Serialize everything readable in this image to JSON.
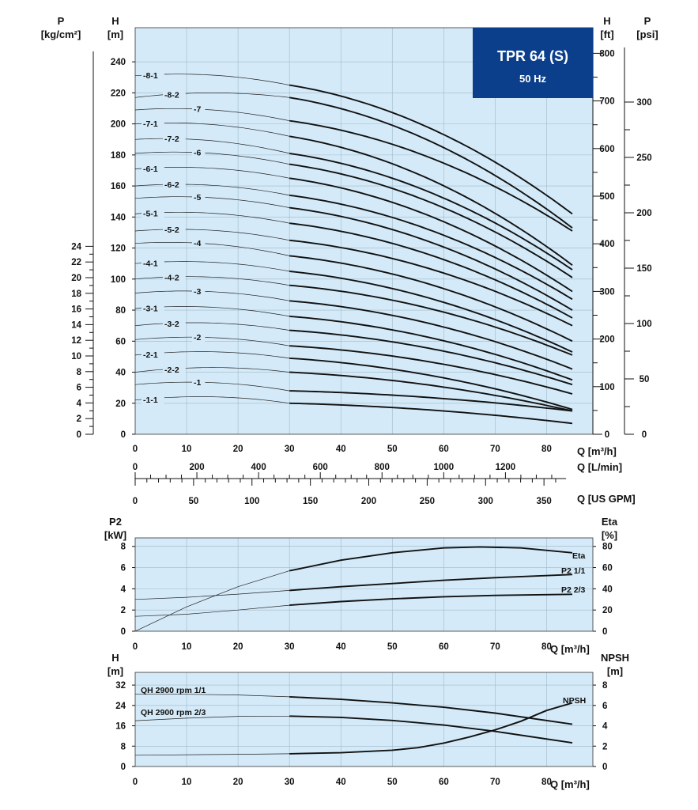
{
  "chart_data": [
    {
      "type": "line",
      "title_box": {
        "line1": "TPR 64 (S)",
        "line2": "50 Hz",
        "color": "#0b3f8c"
      },
      "y_left_outer": {
        "label1": "P",
        "label2": "[kg/cm²]",
        "ticks": [
          "0",
          "2",
          "4",
          "6",
          "8",
          "10",
          "12",
          "14",
          "16",
          "18",
          "20",
          "22",
          "24"
        ]
      },
      "y_left": {
        "label1": "H",
        "label2": "[m]",
        "ticks": [
          "0",
          "20",
          "40",
          "60",
          "80",
          "100",
          "120",
          "140",
          "160",
          "180",
          "200",
          "220",
          "240"
        ],
        "ylim": [
          0,
          262
        ]
      },
      "y_right": {
        "label1": "H",
        "label2": "[ft]",
        "ticks": [
          "0",
          "100",
          "200",
          "300",
          "400",
          "500",
          "600",
          "700",
          "800"
        ]
      },
      "y_right_outer": {
        "label1": "P",
        "label2": "[psi]",
        "ticks": [
          "0",
          "50",
          "100",
          "150",
          "200",
          "250",
          "300"
        ]
      },
      "x_axes": [
        {
          "label": "Q [m³/h]",
          "ticks": [
            "0",
            "10",
            "20",
            "30",
            "40",
            "50",
            "60",
            "70",
            "80"
          ]
        },
        {
          "label": "Q [L/min]",
          "ticks": [
            "0",
            "200",
            "400",
            "600",
            "800",
            "1000",
            "1200"
          ]
        },
        {
          "label": "Q [US GPM]",
          "ticks": [
            "0",
            "50",
            "100",
            "150",
            "200",
            "250",
            "300",
            "350"
          ]
        }
      ],
      "xlim": [
        0,
        89
      ],
      "operating_range": [
        30,
        85
      ],
      "series": [
        {
          "name": "-8-1",
          "h0": 231,
          "h30": 225,
          "h85": 142
        },
        {
          "name": "-8-2",
          "h0": 217,
          "h30": 217,
          "h85": 133
        },
        {
          "name": "-7",
          "h0": 209,
          "h30": 202,
          "h85": 131
        },
        {
          "name": "-7-1",
          "h0": 200,
          "h30": 192,
          "h85": 109
        },
        {
          "name": "-7-2",
          "h0": 190,
          "h30": 181,
          "h85": 106
        },
        {
          "name": "-6",
          "h0": 181,
          "h30": 174,
          "h85": 101
        },
        {
          "name": "-6-1",
          "h0": 171,
          "h30": 165,
          "h85": 92
        },
        {
          "name": "-6-2",
          "h0": 160,
          "h30": 154,
          "h85": 87
        },
        {
          "name": "-5",
          "h0": 152,
          "h30": 146,
          "h85": 80
        },
        {
          "name": "-5-1",
          "h0": 142,
          "h30": 136,
          "h85": 75
        },
        {
          "name": "-5-2",
          "h0": 131,
          "h30": 125,
          "h85": 70
        },
        {
          "name": "-4",
          "h0": 123,
          "h30": 115,
          "h85": 60
        },
        {
          "name": "-4-1",
          "h0": 110,
          "h30": 105,
          "h85": 53
        },
        {
          "name": "-4-2",
          "h0": 100,
          "h30": 96,
          "h85": 51
        },
        {
          "name": "-3",
          "h0": 91,
          "h30": 86,
          "h85": 42
        },
        {
          "name": "-3-1",
          "h0": 81,
          "h30": 76,
          "h85": 35
        },
        {
          "name": "-3-2",
          "h0": 70,
          "h30": 67,
          "h85": 32
        },
        {
          "name": "-2",
          "h0": 61,
          "h30": 57,
          "h85": 26
        },
        {
          "name": "-2-1",
          "h0": 51,
          "h30": 49,
          "h85": 16
        },
        {
          "name": "-2-2",
          "h0": 40,
          "h30": 40,
          "h85": 15
        },
        {
          "name": "-1",
          "h0": 32,
          "h30": 28,
          "h85": 15
        },
        {
          "name": "-1-1",
          "h0": 22,
          "h30": 20,
          "h85": 7
        }
      ]
    },
    {
      "type": "line",
      "y_left": {
        "label1": "P2",
        "label2": "[kW]",
        "ticks": [
          "0",
          "2",
          "4",
          "6",
          "8"
        ],
        "ylim": [
          0,
          8.8
        ]
      },
      "y_right": {
        "label1": "Eta",
        "label2": "[%]",
        "ticks": [
          "0",
          "20",
          "40",
          "60",
          "80"
        ],
        "ylim": [
          0,
          88
        ]
      },
      "x_axis": {
        "label": "Q [m³/h]",
        "ticks": [
          "0",
          "10",
          "20",
          "30",
          "40",
          "50",
          "60",
          "70",
          "80"
        ]
      },
      "series": [
        {
          "name": "Eta",
          "axis": "right",
          "points": [
            [
              0,
              0
            ],
            [
              10,
              23
            ],
            [
              20,
              42
            ],
            [
              30,
              57
            ],
            [
              40,
              67
            ],
            [
              50,
              74
            ],
            [
              60,
              78.5
            ],
            [
              67,
              79.5
            ],
            [
              75,
              78.5
            ],
            [
              85,
              74
            ]
          ]
        },
        {
          "name": "P2 1/1",
          "axis": "left",
          "points": [
            [
              0,
              3
            ],
            [
              10,
              3.2
            ],
            [
              20,
              3.5
            ],
            [
              30,
              3.85
            ],
            [
              40,
              4.2
            ],
            [
              50,
              4.5
            ],
            [
              60,
              4.8
            ],
            [
              70,
              5.05
            ],
            [
              85,
              5.35
            ]
          ]
        },
        {
          "name": "P2 2/3",
          "axis": "left",
          "points": [
            [
              0,
              1.4
            ],
            [
              10,
              1.6
            ],
            [
              20,
              2.0
            ],
            [
              30,
              2.45
            ],
            [
              40,
              2.8
            ],
            [
              50,
              3.05
            ],
            [
              60,
              3.25
            ],
            [
              70,
              3.38
            ],
            [
              85,
              3.48
            ]
          ]
        }
      ]
    },
    {
      "type": "line",
      "y_left": {
        "label1": "H",
        "label2": "[m]",
        "ticks": [
          "0",
          "8",
          "16",
          "24",
          "32"
        ],
        "ylim": [
          0,
          37
        ]
      },
      "y_right": {
        "label1": "NPSH",
        "label2": "[m]",
        "ticks": [
          "0",
          "2",
          "4",
          "6",
          "8"
        ],
        "ylim": [
          0,
          9.25
        ]
      },
      "x_axis": {
        "label": "Q [m³/h]",
        "ticks": [
          "0",
          "10",
          "20",
          "30",
          "40",
          "50",
          "60",
          "70",
          "80"
        ]
      },
      "series": [
        {
          "name": "QH 2900 rpm 1/1",
          "axis": "left",
          "points": [
            [
              0,
              28.5
            ],
            [
              10,
              28.4
            ],
            [
              20,
              28.1
            ],
            [
              30,
              27.4
            ],
            [
              40,
              26.4
            ],
            [
              50,
              25.0
            ],
            [
              60,
              23.3
            ],
            [
              70,
              21.0
            ],
            [
              85,
              16.6
            ]
          ]
        },
        {
          "name": "QH 2900 rpm 2/3",
          "axis": "left",
          "points": [
            [
              0,
              18
            ],
            [
              10,
              19
            ],
            [
              20,
              19.7
            ],
            [
              30,
              19.8
            ],
            [
              40,
              19.3
            ],
            [
              50,
              18.1
            ],
            [
              60,
              16.3
            ],
            [
              70,
              13.8
            ],
            [
              85,
              9.3
            ]
          ]
        },
        {
          "name": "NPSH",
          "axis": "right",
          "points": [
            [
              0,
              1.1
            ],
            [
              20,
              1.2
            ],
            [
              30,
              1.25
            ],
            [
              40,
              1.35
            ],
            [
              50,
              1.6
            ],
            [
              55,
              1.85
            ],
            [
              60,
              2.3
            ],
            [
              65,
              2.9
            ],
            [
              70,
              3.6
            ],
            [
              75,
              4.45
            ],
            [
              80,
              5.5
            ],
            [
              85,
              6.25
            ]
          ]
        }
      ]
    }
  ]
}
